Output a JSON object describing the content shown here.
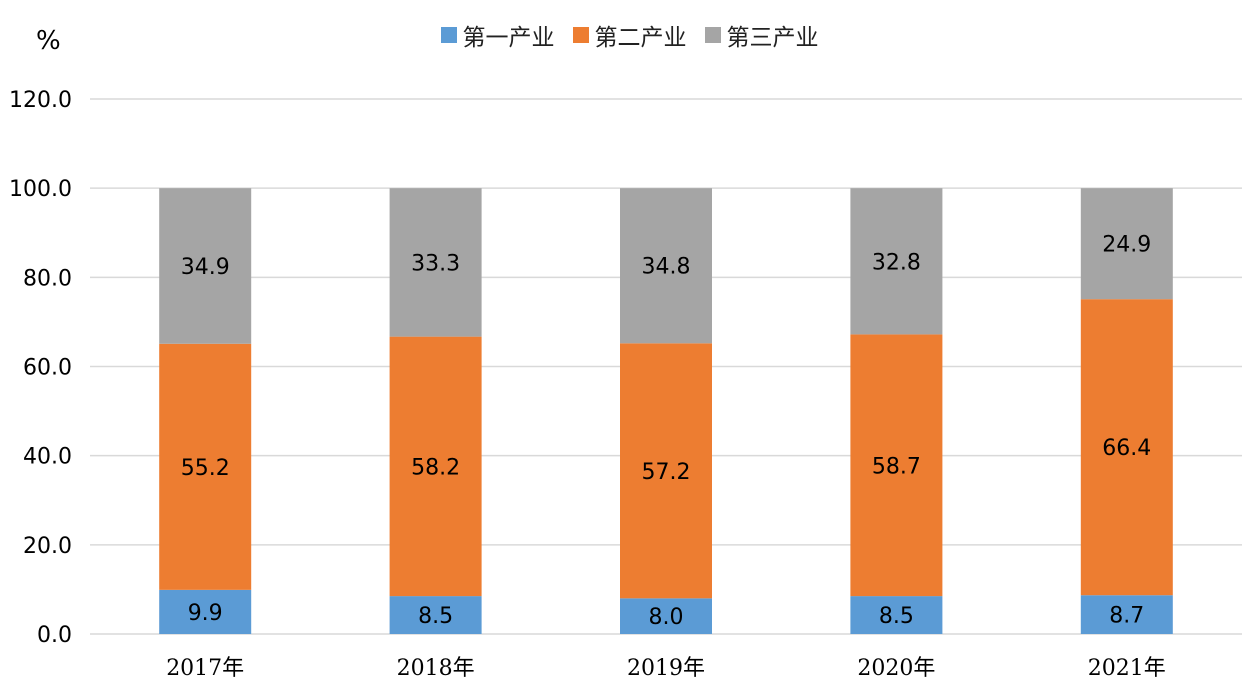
{
  "chart_data": {
    "type": "bar",
    "stacked": true,
    "unit_label": "%",
    "categories": [
      "2017年",
      "2018年",
      "2019年",
      "2020年",
      "2021年"
    ],
    "series": [
      {
        "name": "第一产业",
        "color": "#5b9bd5",
        "values": [
          9.9,
          8.5,
          8.0,
          8.5,
          8.7
        ]
      },
      {
        "name": "第二产业",
        "color": "#ed7d31",
        "values": [
          55.2,
          58.2,
          57.2,
          58.7,
          66.4
        ]
      },
      {
        "name": "第三产业",
        "color": "#a5a5a5",
        "values": [
          34.9,
          33.3,
          34.8,
          32.8,
          24.9
        ]
      }
    ],
    "ylim": [
      0,
      120
    ],
    "yticks": [
      "0.0",
      "20.0",
      "40.0",
      "60.0",
      "80.0",
      "100.0",
      "120.0"
    ],
    "grid": true,
    "legend_position": "top-center"
  }
}
